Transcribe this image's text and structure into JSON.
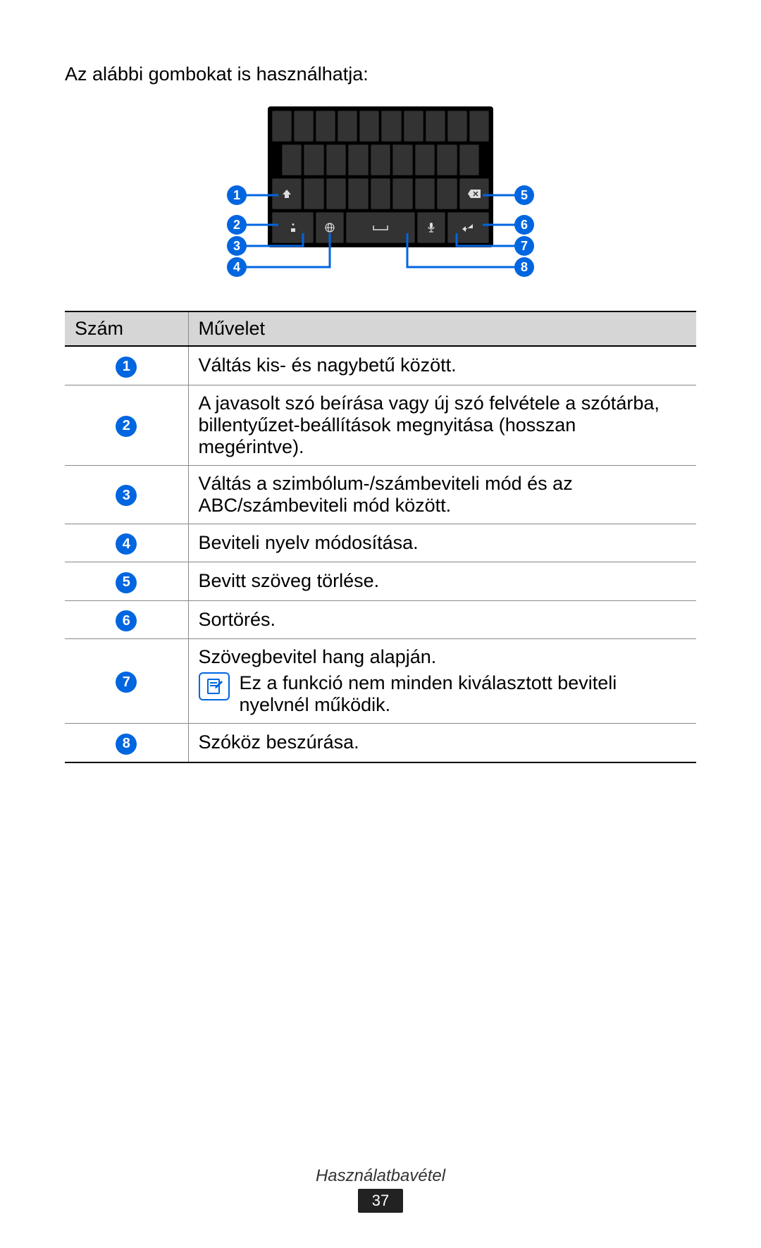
{
  "intro": "Az alábbi gombokat is használhatja:",
  "accent_color": "#0066e0",
  "keyboard": {
    "rows": [
      {
        "keys": 10
      },
      {
        "keys": 9
      },
      {
        "special": "row3"
      },
      {
        "special": "row4"
      }
    ]
  },
  "callouts": [
    {
      "n": "1",
      "side": "left"
    },
    {
      "n": "2",
      "side": "left"
    },
    {
      "n": "3",
      "side": "left"
    },
    {
      "n": "4",
      "side": "left"
    },
    {
      "n": "5",
      "side": "right"
    },
    {
      "n": "6",
      "side": "right"
    },
    {
      "n": "7",
      "side": "right"
    },
    {
      "n": "8",
      "side": "right"
    }
  ],
  "table": {
    "headers": [
      "Szám",
      "Művelet"
    ],
    "rows": [
      {
        "n": "1",
        "text": "Váltás kis- és nagybetű között."
      },
      {
        "n": "2",
        "text": "A javasolt szó beírása vagy új szó felvétele a szótárba, billentyűzet-beállítások megnyitása (hosszan megérintve)."
      },
      {
        "n": "3",
        "text": "Váltás a szimbólum-/számbeviteli mód és az ABC/számbeviteli mód között."
      },
      {
        "n": "4",
        "text": "Beviteli nyelv módosítása."
      },
      {
        "n": "5",
        "text": "Bevitt szöveg törlése."
      },
      {
        "n": "6",
        "text": "Sortörés."
      },
      {
        "n": "7",
        "text": "Szövegbevitel hang alapján.",
        "note": "Ez a funkció nem minden kiválasztott beviteli nyelvnél működik."
      },
      {
        "n": "8",
        "text": "Szóköz beszúrása."
      }
    ]
  },
  "footer": {
    "section": "Használatbavétel",
    "page": "37"
  }
}
